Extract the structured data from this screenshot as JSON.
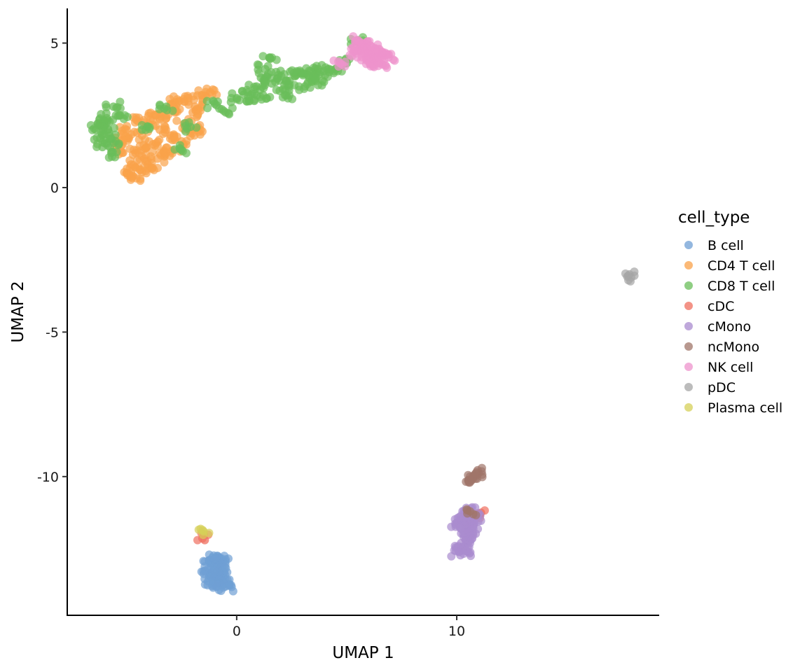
{
  "chart_data": {
    "type": "scatter",
    "title": "",
    "xlabel": "UMAP 1",
    "ylabel": "UMAP 2",
    "xlim": [
      -7.7,
      19.2
    ],
    "ylim": [
      -14.8,
      6.2
    ],
    "x_ticks": [
      {
        "value": 0,
        "label": "0"
      },
      {
        "value": 10,
        "label": "10"
      }
    ],
    "y_ticks": [
      {
        "value": 5,
        "label": "5"
      },
      {
        "value": 0,
        "label": "0"
      },
      {
        "value": -5,
        "label": "-5"
      },
      {
        "value": -10,
        "label": "-10"
      }
    ],
    "grid": false,
    "legend": {
      "title": "cell_type",
      "position": "right"
    },
    "series": [
      {
        "name": "B cell",
        "color": "#6f9fd4",
        "points": [
          [
            -1.1,
            -12.8
          ],
          [
            -1.0,
            -12.9
          ],
          [
            -0.8,
            -12.8
          ],
          [
            -1.2,
            -13.0
          ],
          [
            -0.9,
            -13.1
          ],
          [
            -1.0,
            -13.3
          ],
          [
            -0.8,
            -13.2
          ],
          [
            -1.2,
            -13.4
          ],
          [
            -0.9,
            -13.5
          ],
          [
            -0.7,
            -13.4
          ],
          [
            -1.1,
            -13.6
          ],
          [
            -0.8,
            -13.7
          ],
          [
            -0.6,
            -13.6
          ],
          [
            -0.5,
            -13.8
          ],
          [
            -0.9,
            -13.8
          ],
          [
            -1.0,
            -13.45
          ],
          [
            -1.3,
            -13.2
          ],
          [
            -0.7,
            -13.0
          ]
        ]
      },
      {
        "name": "CD4 T cell",
        "color": "#f9a24a",
        "points": [
          [
            -5.3,
            1.6
          ],
          [
            -5.0,
            2.0
          ],
          [
            -5.2,
            1.2
          ],
          [
            -4.8,
            0.8
          ],
          [
            -5.0,
            0.5
          ],
          [
            -4.7,
            0.4
          ],
          [
            -4.4,
            0.6
          ],
          [
            -4.6,
            1.2
          ],
          [
            -4.3,
            1.8
          ],
          [
            -4.0,
            2.2
          ],
          [
            -4.2,
            1.0
          ],
          [
            -3.8,
            1.5
          ],
          [
            -3.5,
            2.0
          ],
          [
            -3.6,
            1.0
          ],
          [
            -3.2,
            2.4
          ],
          [
            -3.0,
            1.8
          ],
          [
            -2.8,
            2.6
          ],
          [
            -2.6,
            3.0
          ],
          [
            -2.4,
            2.2
          ],
          [
            -2.2,
            3.1
          ],
          [
            -2.0,
            2.6
          ],
          [
            -2.5,
            1.6
          ],
          [
            -3.3,
            1.2
          ],
          [
            -3.9,
            0.7
          ],
          [
            -4.5,
            2.3
          ],
          [
            -4.9,
            1.7
          ],
          [
            -2.1,
            1.9
          ],
          [
            -1.9,
            2.8
          ],
          [
            -1.6,
            3.2
          ],
          [
            -1.8,
            2.0
          ],
          [
            -3.0,
            2.9
          ],
          [
            -3.7,
            2.5
          ],
          [
            -4.1,
            1.4
          ],
          [
            -2.9,
            1.3
          ],
          [
            -1.2,
            3.3
          ]
        ]
      },
      {
        "name": "CD8 T cell",
        "color": "#6abd5a",
        "points": [
          [
            -6.4,
            2.0
          ],
          [
            -6.2,
            1.7
          ],
          [
            -6.0,
            2.3
          ],
          [
            -6.1,
            1.4
          ],
          [
            -5.8,
            1.9
          ],
          [
            -5.9,
            2.4
          ],
          [
            -5.5,
            1.6
          ],
          [
            -5.7,
            1.2
          ],
          [
            -6.3,
            2.2
          ],
          [
            -5.6,
            2.8
          ],
          [
            -3.2,
            2.8
          ],
          [
            -2.5,
            1.3
          ],
          [
            -2.1,
            2.1
          ],
          [
            -1.0,
            2.9
          ],
          [
            -0.5,
            2.6
          ],
          [
            0.0,
            3.1
          ],
          [
            0.5,
            3.3
          ],
          [
            0.9,
            3.5
          ],
          [
            0.8,
            3.0
          ],
          [
            1.1,
            3.8
          ],
          [
            1.3,
            4.1
          ],
          [
            1.5,
            4.5
          ],
          [
            1.6,
            3.6
          ],
          [
            1.9,
            3.9
          ],
          [
            2.1,
            3.4
          ],
          [
            2.4,
            3.7
          ],
          [
            2.7,
            3.9
          ],
          [
            2.9,
            4.0
          ],
          [
            3.1,
            3.5
          ],
          [
            3.3,
            3.8
          ],
          [
            3.5,
            4.0
          ],
          [
            3.7,
            4.1
          ],
          [
            3.9,
            3.7
          ],
          [
            4.2,
            4.0
          ],
          [
            4.5,
            4.1
          ],
          [
            2.2,
            3.2
          ],
          [
            1.2,
            3.2
          ],
          [
            5.0,
            4.3
          ],
          [
            5.5,
            5.1
          ],
          [
            -4.3,
            2.0
          ],
          [
            -5.3,
            2.5
          ]
        ]
      },
      {
        "name": "cDC",
        "color": "#ef6f5f",
        "points": [
          [
            -1.45,
            -12.2
          ],
          [
            -1.5,
            -12.0
          ],
          [
            11.0,
            -11.3
          ],
          [
            11.1,
            -11.25
          ],
          [
            10.9,
            -11.4
          ],
          [
            11.05,
            -11.35
          ]
        ]
      },
      {
        "name": "cMono",
        "color": "#a98bcf",
        "points": [
          [
            10.0,
            -11.6
          ],
          [
            10.2,
            -11.5
          ],
          [
            10.4,
            -11.7
          ],
          [
            10.6,
            -11.6
          ],
          [
            10.3,
            -12.0
          ],
          [
            10.5,
            -11.9
          ],
          [
            10.7,
            -11.8
          ],
          [
            10.2,
            -12.3
          ],
          [
            10.4,
            -12.2
          ],
          [
            10.6,
            -12.1
          ],
          [
            10.3,
            -12.5
          ],
          [
            10.5,
            -12.6
          ],
          [
            10.1,
            -12.6
          ],
          [
            10.65,
            -11.1
          ],
          [
            10.8,
            -11.5
          ],
          [
            10.6,
            -11.3
          ]
        ]
      },
      {
        "name": "ncMono",
        "color": "#a0756a",
        "points": [
          [
            10.55,
            -10.2
          ],
          [
            10.65,
            -10.15
          ],
          [
            10.75,
            -10.05
          ],
          [
            10.8,
            -9.95
          ],
          [
            10.9,
            -9.85
          ],
          [
            10.95,
            -9.78
          ],
          [
            10.7,
            -10.1
          ],
          [
            10.85,
            -9.9
          ],
          [
            10.6,
            -11.2
          ],
          [
            10.75,
            -11.3
          ]
        ]
      },
      {
        "name": "NK cell",
        "color": "#ee93cc",
        "points": [
          [
            5.5,
            5.1
          ],
          [
            5.6,
            4.8
          ],
          [
            5.8,
            4.6
          ],
          [
            6.0,
            4.7
          ],
          [
            6.2,
            4.5
          ],
          [
            6.4,
            4.6
          ],
          [
            6.6,
            4.7
          ],
          [
            6.5,
            4.3
          ],
          [
            6.2,
            4.2
          ],
          [
            5.9,
            4.4
          ],
          [
            6.8,
            4.6
          ],
          [
            6.9,
            4.5
          ],
          [
            6.3,
            4.8
          ],
          [
            5.7,
            5.0
          ],
          [
            6.1,
            4.9
          ],
          [
            4.7,
            4.3
          ],
          [
            5.3,
            4.7
          ]
        ]
      },
      {
        "name": "pDC",
        "color": "#a5a5a5",
        "points": [
          [
            17.8,
            -3.05
          ],
          [
            17.85,
            -3.0
          ],
          [
            17.75,
            -3.08
          ]
        ]
      },
      {
        "name": "Plasma cell",
        "color": "#d6d058",
        "points": [
          [
            -1.55,
            -11.85
          ],
          [
            -1.5,
            -11.9
          ]
        ]
      }
    ]
  }
}
